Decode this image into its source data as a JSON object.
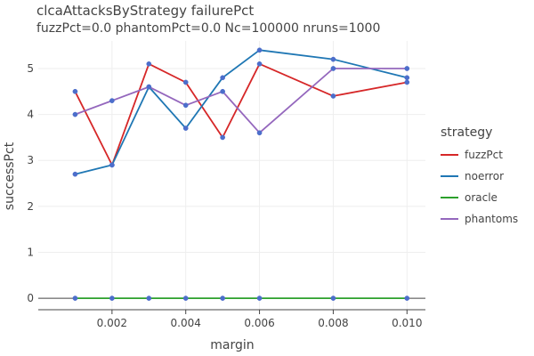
{
  "chart_data": {
    "type": "line",
    "title": "clcaAttacksByStrategy failurePct",
    "subtitle": "fuzzPct=0.0 phantomPct=0.0 Nc=100000 nruns=1000",
    "xlabel": "margin",
    "ylabel": "successPct",
    "xlim": [
      0.0,
      0.0105
    ],
    "ylim": [
      -0.25,
      5.6
    ],
    "xticks": [
      0.002,
      0.004,
      0.006,
      0.008,
      0.01
    ],
    "xtick_labels": [
      "0.002",
      "0.004",
      "0.006",
      "0.008",
      "0.010"
    ],
    "yticks": [
      0,
      1,
      2,
      3,
      4,
      5
    ],
    "ytick_labels": [
      "0",
      "1",
      "2",
      "3",
      "4",
      "5"
    ],
    "grid": true,
    "marker_color": "#4c6ecb",
    "legend": {
      "title": "strategy",
      "position": "right"
    },
    "x": [
      0.001,
      0.002,
      0.003,
      0.004,
      0.005,
      0.006,
      0.008,
      0.01
    ],
    "series": [
      {
        "name": "fuzzPct",
        "color": "#d62728",
        "values": [
          4.5,
          2.9,
          5.1,
          4.7,
          3.5,
          5.1,
          4.4,
          4.7
        ]
      },
      {
        "name": "noerror",
        "color": "#1f77b4",
        "values": [
          2.7,
          2.9,
          4.6,
          3.7,
          4.8,
          5.4,
          5.2,
          4.8
        ]
      },
      {
        "name": "oracle",
        "color": "#2ca02c",
        "values": [
          0,
          0,
          0,
          0,
          0,
          0,
          0,
          0
        ]
      },
      {
        "name": "phantoms",
        "color": "#9467bd",
        "values": [
          4.0,
          4.3,
          4.6,
          4.2,
          4.5,
          3.6,
          5.0,
          5.0
        ]
      }
    ]
  }
}
